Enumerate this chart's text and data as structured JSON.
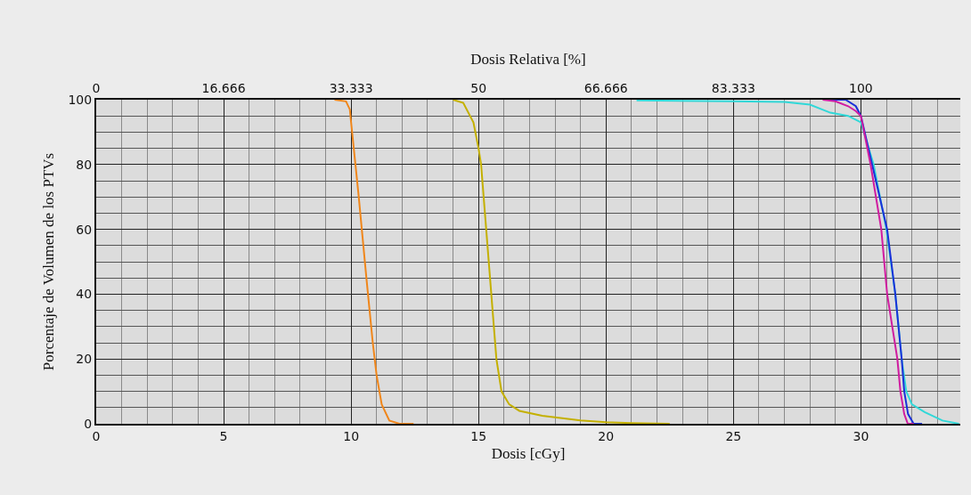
{
  "chart_data": {
    "type": "line",
    "xlabel": "Dosis [cGy]",
    "ylabel": "Porcentaje de Volumen de los PTVs",
    "x2label": "Dosis Relativa [%]",
    "xlim": [
      0,
      33.9
    ],
    "xticks": [
      0,
      5,
      10,
      15,
      20,
      25,
      30
    ],
    "x2lim": [
      0,
      113
    ],
    "x2ticks": [
      0,
      {
        "value": 16.666,
        "label": "16.666"
      },
      {
        "value": 33.333,
        "label": "33.333"
      },
      50,
      {
        "value": 66.666,
        "label": "66.666"
      },
      {
        "value": 83.333,
        "label": "83.333"
      },
      100
    ],
    "ylim": [
      0,
      100
    ],
    "yticks": [
      0,
      20,
      40,
      60,
      80,
      100
    ],
    "grid": true,
    "marker": "none",
    "line_style": "solid",
    "series": [
      {
        "color": "#f0861a",
        "x": [
          9.35,
          9.8,
          9.95,
          10.0,
          10.3,
          10.6,
          10.85,
          11.0,
          11.2,
          11.5,
          11.9,
          12.45
        ],
        "values": [
          100,
          99.5,
          97,
          93,
          70,
          45,
          25,
          15,
          6,
          1,
          0,
          0
        ]
      },
      {
        "color": "#c4b000",
        "x": [
          14.0,
          14.4,
          14.8,
          15.0,
          15.1,
          15.3,
          15.5,
          15.7,
          15.9,
          16.2,
          16.6,
          17.5,
          19,
          20,
          21,
          22.5
        ],
        "values": [
          100,
          99,
          93,
          85,
          80,
          60,
          40,
          20,
          10,
          6,
          4,
          2.5,
          1,
          0.5,
          0.2,
          0
        ]
      },
      {
        "color": "#30d8d8",
        "x": [
          21.2,
          25,
          27,
          28,
          28.8,
          29.5,
          30,
          30.5,
          31.0,
          31.35,
          31.6,
          31.78,
          32.0,
          32.5,
          33.2,
          33.85
        ],
        "values": [
          99.8,
          99.5,
          99.3,
          98.5,
          96,
          95,
          93,
          80,
          60,
          40,
          20,
          10,
          6,
          3.6,
          1,
          0
        ]
      },
      {
        "color": "#1a30d8",
        "x": [
          28.8,
          29.4,
          29.8,
          30.0,
          30.44,
          31.03,
          31.35,
          31.6,
          31.7,
          31.85,
          32.07,
          32.4
        ],
        "values": [
          100,
          100,
          98,
          95,
          80,
          60,
          40,
          20,
          10,
          3,
          0,
          0
        ]
      },
      {
        "color": "#d01ca0",
        "x": [
          28.5,
          29.0,
          29.5,
          29.8,
          30.0,
          30.38,
          30.8,
          31.03,
          31.43,
          31.55,
          31.7,
          31.84,
          32.07
        ],
        "values": [
          100,
          99.5,
          98,
          96.5,
          95,
          80,
          60,
          40,
          20,
          10,
          3,
          0,
          0
        ]
      }
    ]
  }
}
